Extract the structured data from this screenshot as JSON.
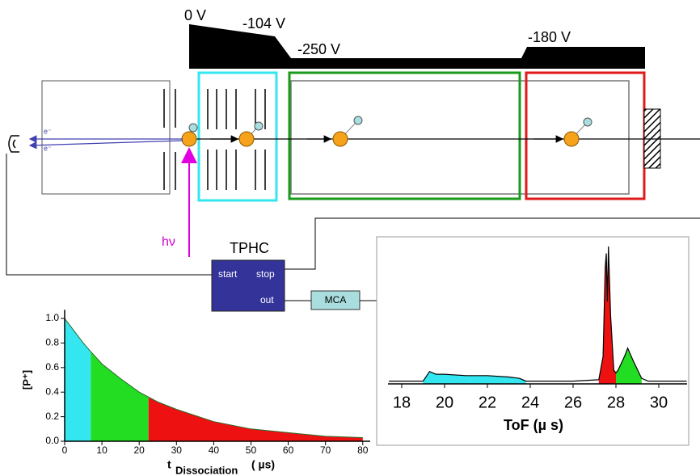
{
  "voltages": [
    "0 V",
    "-104 V",
    "-250 V",
    "-180 V"
  ],
  "electron_labels": [
    "e⁻",
    "e⁻"
  ],
  "photon_label": "hν",
  "tphc": {
    "title": "TPHC",
    "start": "start",
    "stop": "stop",
    "out": "out"
  },
  "mca": "MCA",
  "decay_plot": {
    "x": [
      0,
      5,
      7,
      10,
      15,
      20,
      22.5,
      25,
      30,
      40,
      50,
      60,
      70,
      80
    ],
    "values": [
      1.0,
      0.8,
      0.73,
      0.63,
      0.51,
      0.4,
      0.36,
      0.32,
      0.26,
      0.16,
      0.1,
      0.07,
      0.04,
      0.03
    ],
    "line_color": "#2a6a2a",
    "xlim": [
      0,
      82
    ],
    "ylim": [
      0,
      1.07
    ],
    "xticks": [
      0,
      10,
      20,
      30,
      40,
      50,
      60,
      70,
      80
    ],
    "yticks": [
      {
        "value": 0,
        "label": "0.0"
      },
      {
        "value": 0.2,
        "label": "0.2"
      },
      {
        "value": 0.4,
        "label": "0.4"
      },
      {
        "value": 0.6,
        "label": "0.6"
      },
      {
        "value": 0.8,
        "label": "0.8"
      },
      {
        "value": 1,
        "label": "1.0"
      }
    ],
    "y_label": "[P⁺]",
    "x_label": "t",
    "x_label_sub": "Dissociation",
    "x_label_unit": "( µs)",
    "regions": [
      {
        "color": "#33e6f0",
        "range": [
          0,
          7
        ]
      },
      {
        "color": "#22dd22",
        "range": [
          7,
          22.5
        ]
      },
      {
        "color": "#ee1111",
        "range": [
          22.5,
          80
        ]
      }
    ]
  },
  "tof_plot": {
    "x": [
      17.4,
      19.0,
      19.3,
      19.6,
      20,
      21,
      22,
      23,
      23.5,
      23.8,
      26,
      27.2,
      27.4,
      27.5,
      27.55,
      27.6,
      27.65,
      27.75,
      27.9,
      28.0,
      28.1,
      28.4,
      28.55,
      28.8,
      29.2,
      29.5,
      31.3
    ],
    "values": [
      0.02,
      0.02,
      0.09,
      0.07,
      0.07,
      0.06,
      0.06,
      0.05,
      0.04,
      0.02,
      0.02,
      0.03,
      0.2,
      0.85,
      0.95,
      0.6,
      1.0,
      0.5,
      0.1,
      0.08,
      0.1,
      0.2,
      0.26,
      0.17,
      0.04,
      0.02,
      0.02
    ],
    "line_color": "#000000",
    "xlim": [
      17.36,
      31.32
    ],
    "ylim": [
      0,
      1.1
    ],
    "xticks": [
      18,
      20,
      22,
      24,
      26,
      28,
      30
    ],
    "x_label": "ToF (µ s)",
    "regions": [
      {
        "color": "#33e6f0",
        "range": [
          19.0,
          23.8
        ]
      },
      {
        "color": "#ee1111",
        "range": [
          27.2,
          28.0
        ]
      },
      {
        "color": "#22dd22",
        "range": [
          28.0,
          29.2
        ]
      }
    ]
  }
}
